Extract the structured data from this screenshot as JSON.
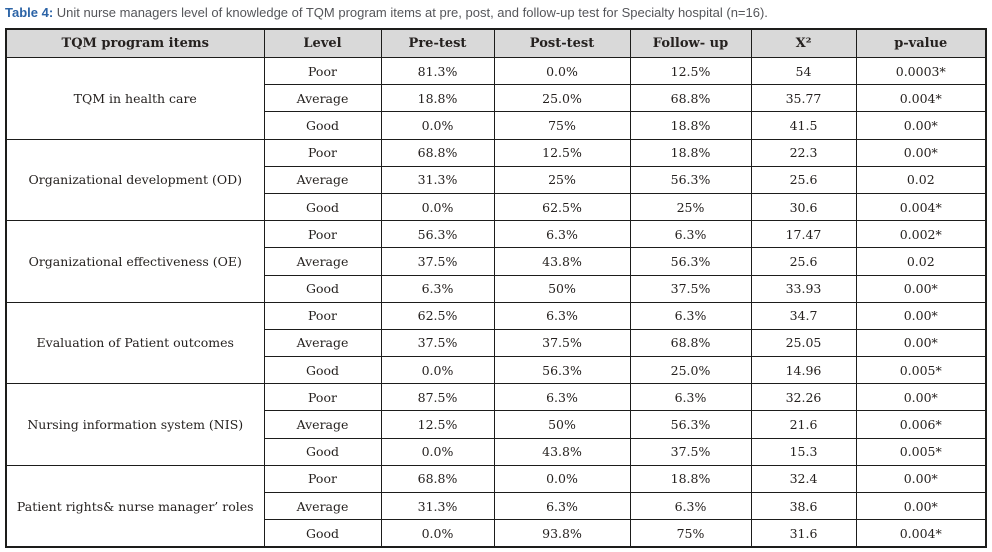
{
  "caption": {
    "label": "Table 4:",
    "text": " Unit nurse managers level of knowledge of TQM program items at pre, post, and follow-up test for Specialty hospital (n=16)."
  },
  "colors": {
    "caption_label_blue": "#2b63a6",
    "caption_text_gray": "#55565a",
    "header_background": "#d9d9d9",
    "border": "#1d1d1b",
    "cell_text": "#25211f"
  },
  "table": {
    "headers": [
      "TQM program items",
      "Level",
      "Pre-test",
      "Post-test",
      "Follow- up",
      "X²",
      "p-value"
    ],
    "groups": [
      {
        "item": "TQM in health care",
        "rows": [
          {
            "level": "Poor",
            "pre": "81.3%",
            "post": "0.0%",
            "follow": "12.5%",
            "x2": "54",
            "p": "0.0003*"
          },
          {
            "level": "Average",
            "pre": "18.8%",
            "post": "25.0%",
            "follow": "68.8%",
            "x2": "35.77",
            "p": "0.004*"
          },
          {
            "level": "Good",
            "pre": "0.0%",
            "post": "75%",
            "follow": "18.8%",
            "x2": "41.5",
            "p": "0.00*"
          }
        ]
      },
      {
        "item": "Organizational development (OD)",
        "rows": [
          {
            "level": "Poor",
            "pre": "68.8%",
            "post": "12.5%",
            "follow": "18.8%",
            "x2": "22.3",
            "p": "0.00*"
          },
          {
            "level": "Average",
            "pre": "31.3%",
            "post": "25%",
            "follow": "56.3%",
            "x2": "25.6",
            "p": "0.02"
          },
          {
            "level": "Good",
            "pre": "0.0%",
            "post": "62.5%",
            "follow": "25%",
            "x2": "30.6",
            "p": "0.004*"
          }
        ]
      },
      {
        "item": "Organizational effectiveness (OE)",
        "rows": [
          {
            "level": "Poor",
            "pre": "56.3%",
            "post": "6.3%",
            "follow": "6.3%",
            "x2": "17.47",
            "p": "0.002*"
          },
          {
            "level": "Average",
            "pre": "37.5%",
            "post": "43.8%",
            "follow": "56.3%",
            "x2": "25.6",
            "p": "0.02"
          },
          {
            "level": "Good",
            "pre": "6.3%",
            "post": "50%",
            "follow": "37.5%",
            "x2": "33.93",
            "p": "0.00*"
          }
        ]
      },
      {
        "item": "Evaluation of Patient outcomes",
        "rows": [
          {
            "level": "Poor",
            "pre": "62.5%",
            "post": "6.3%",
            "follow": "6.3%",
            "x2": "34.7",
            "p": "0.00*"
          },
          {
            "level": "Average",
            "pre": "37.5%",
            "post": "37.5%",
            "follow": "68.8%",
            "x2": "25.05",
            "p": "0.00*"
          },
          {
            "level": "Good",
            "pre": "0.0%",
            "post": "56.3%",
            "follow": "25.0%",
            "x2": "14.96",
            "p": "0.005*"
          }
        ]
      },
      {
        "item": "Nursing information system (NIS)",
        "rows": [
          {
            "level": "Poor",
            "pre": "87.5%",
            "post": "6.3%",
            "follow": "6.3%",
            "x2": "32.26",
            "p": "0.00*"
          },
          {
            "level": "Average",
            "pre": "12.5%",
            "post": "50%",
            "follow": "56.3%",
            "x2": "21.6",
            "p": "0.006*"
          },
          {
            "level": "Good",
            "pre": "0.0%",
            "post": "43.8%",
            "follow": "37.5%",
            "x2": "15.3",
            "p": "0.005*"
          }
        ]
      },
      {
        "item": "Patient rights& nurse manager’ roles",
        "rows": [
          {
            "level": "Poor",
            "pre": "68.8%",
            "post": "0.0%",
            "follow": "18.8%",
            "x2": "32.4",
            "p": "0.00*"
          },
          {
            "level": "Average",
            "pre": "31.3%",
            "post": "6.3%",
            "follow": "6.3%",
            "x2": "38.6",
            "p": "0.00*"
          },
          {
            "level": "Good",
            "pre": "0.0%",
            "post": "93.8%",
            "follow": "75%",
            "x2": "31.6",
            "p": "0.004*"
          }
        ]
      }
    ]
  }
}
